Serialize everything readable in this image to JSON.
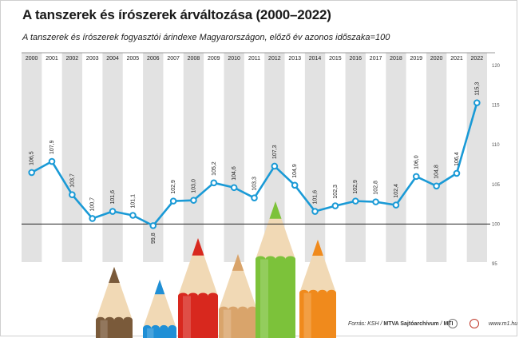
{
  "chart_data": {
    "type": "line",
    "title": "A tanszerek és írószerek árváltozása (2000–2022)",
    "subtitle": "A tanszerek és írószerek fogyasztói árindexe Magyarországon, előző év azonos időszaka=100",
    "x": [
      "2000",
      "2001",
      "2002",
      "2003",
      "2004",
      "2005",
      "2006",
      "2007",
      "2008",
      "2009",
      "2010",
      "2011",
      "2012",
      "2013",
      "2014",
      "2015",
      "2016",
      "2017",
      "2018",
      "2019",
      "2020",
      "2021",
      "2022"
    ],
    "values": [
      106.5,
      107.9,
      103.7,
      100.7,
      101.6,
      101.1,
      99.8,
      102.9,
      103.0,
      105.2,
      104.6,
      103.3,
      107.3,
      104.9,
      101.6,
      102.3,
      102.9,
      102.8,
      102.4,
      106.0,
      104.8,
      106.4,
      115.3
    ],
    "value_labels": [
      "106,5",
      "107,9",
      "103,7",
      "100,7",
      "101,6",
      "101,1",
      "99,8",
      "102,9",
      "103,0",
      "105,2",
      "104,6",
      "103,3",
      "107,3",
      "104,9",
      "101,6",
      "102,3",
      "102,9",
      "102,8",
      "102,4",
      "106,0",
      "104,8",
      "106,4",
      "115,3"
    ],
    "yticks": [
      95,
      100,
      105,
      110,
      115,
      120
    ],
    "ylim": [
      95,
      120
    ],
    "reference_value": 100,
    "grid": false,
    "colors": {
      "line": "#1a9ad6",
      "point_fill": "#ffffff",
      "column_shade": "#e2e2e2",
      "reference_line": "#222222"
    }
  },
  "footer": {
    "source_label": "Forrás: KSH /",
    "agency": "MTVA Sajtóarchívum",
    "separator": "/",
    "mti": "MTI",
    "site": "www.m1.hu"
  },
  "decoration": [
    "pencil-brown",
    "pencil-blue",
    "pencil-red",
    "pencil-natural",
    "pencil-green",
    "pencil-orange"
  ]
}
